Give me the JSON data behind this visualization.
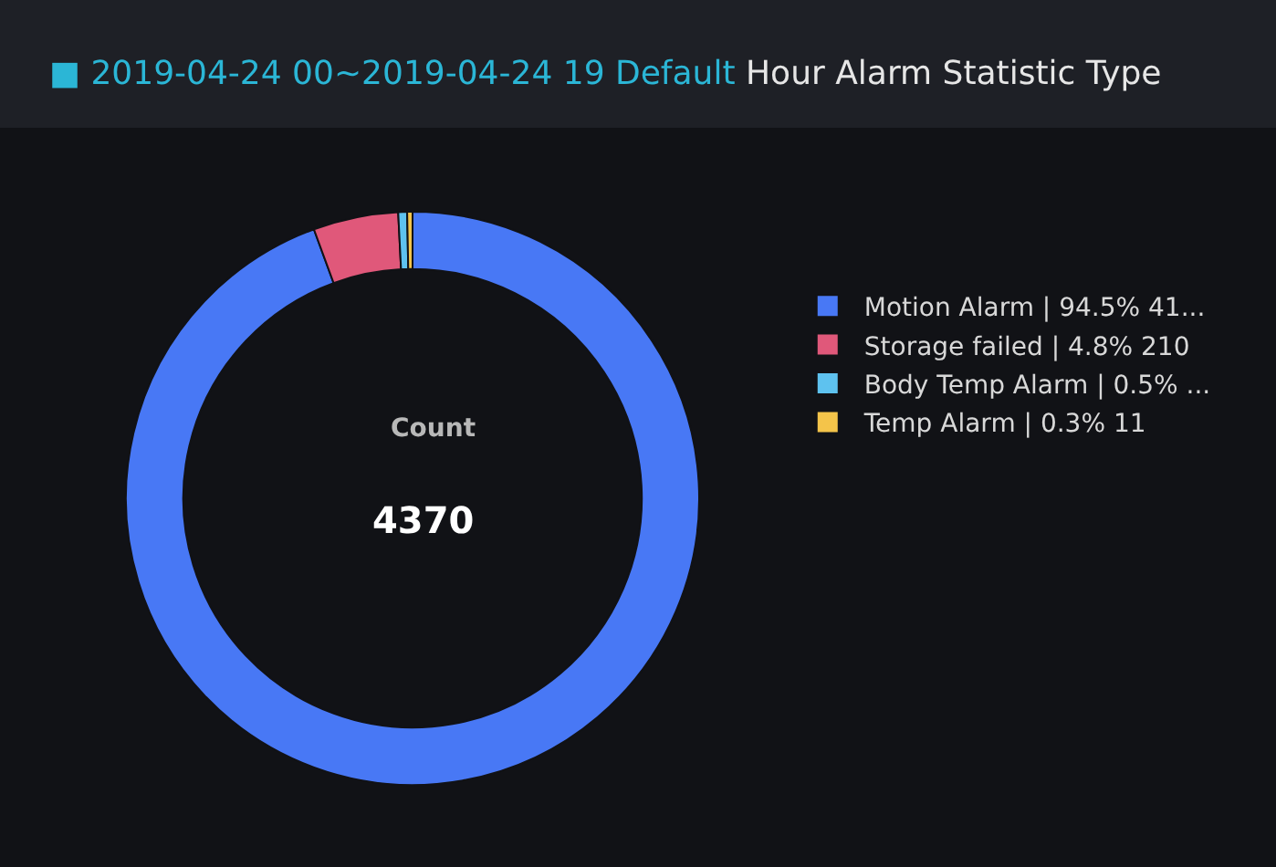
{
  "chart_data": {
    "type": "donut",
    "title": "■ 2019-04-24 00~2019-04-24 19 Default",
    "subtitle": "Hour Alarm Statistic Type",
    "categories": [
      "Motion Alarm | 94.5% 41...",
      "Storage failed | 4.8% 210",
      "Body Temp Alarm | 0.5% ...",
      "Temp Alarm | 0.3% 11"
    ],
    "values": [
      94.5,
      4.8,
      0.5,
      0.3
    ],
    "colors": [
      "#4878f5",
      "#e0587a",
      "#5ec2ef",
      "#f4c44a"
    ],
    "annotations": [
      "Count",
      "4370"
    ],
    "legend": "right"
  }
}
